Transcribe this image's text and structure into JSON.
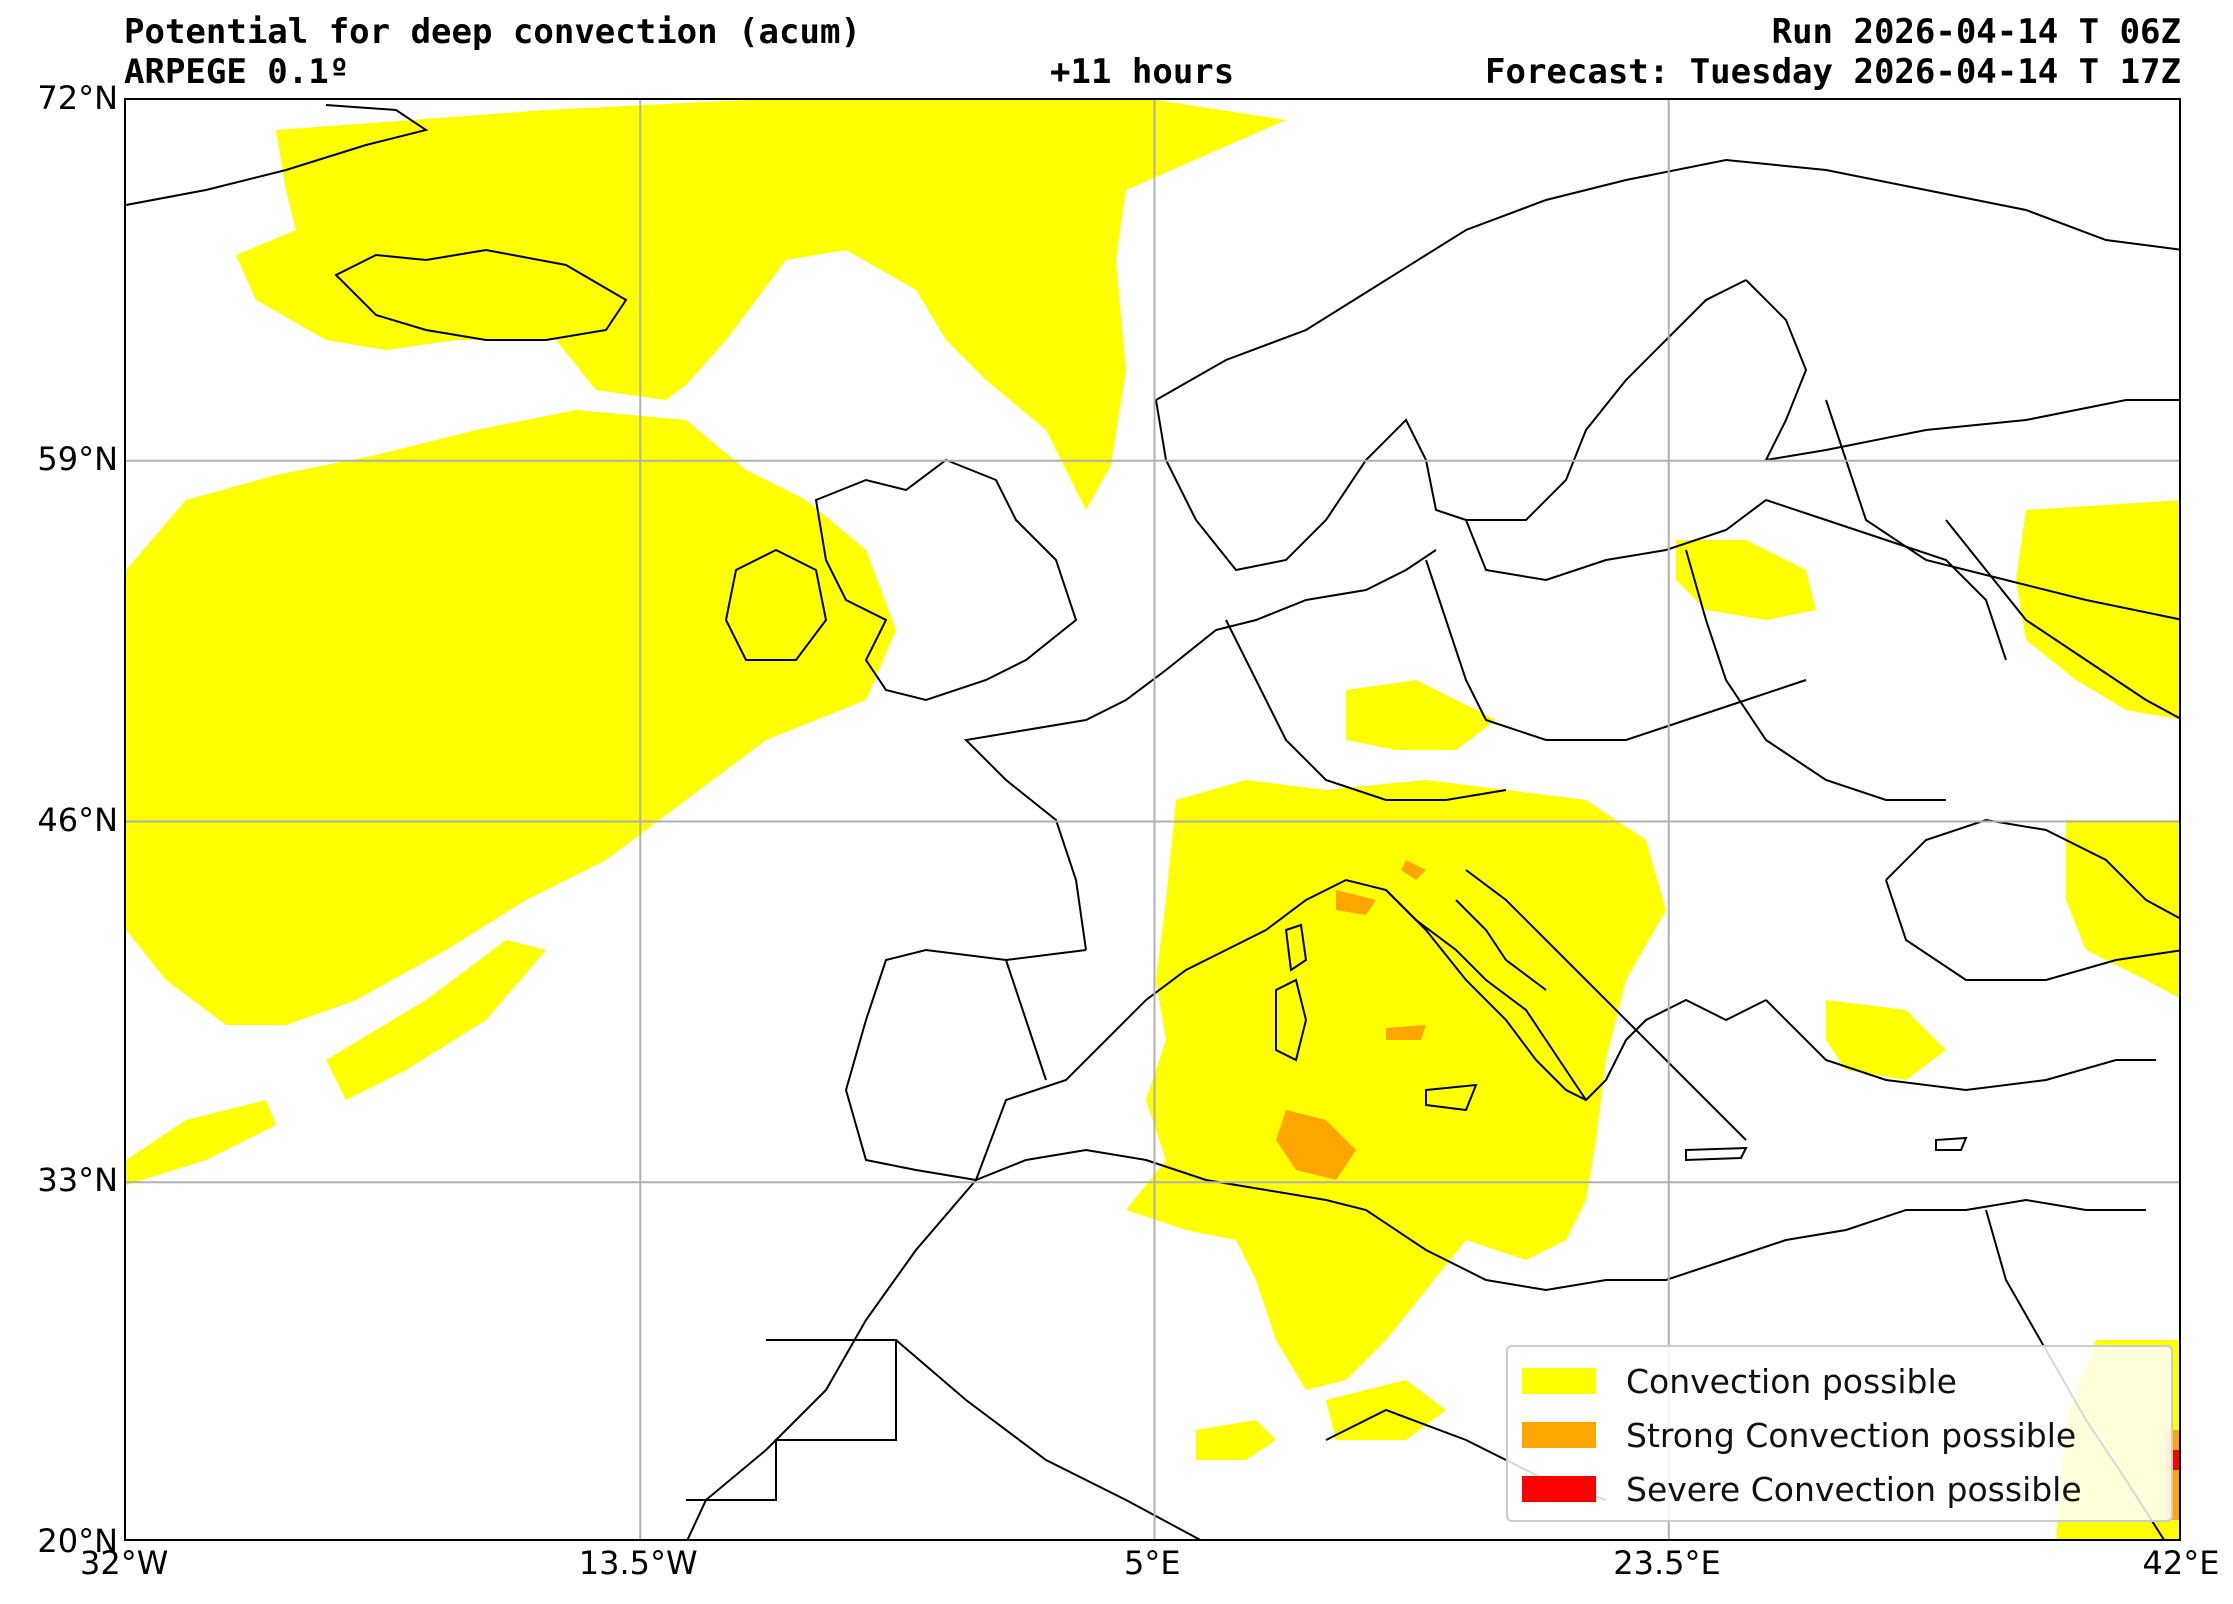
{
  "header": {
    "title": "Potential for deep convection (acum)",
    "model": "ARPEGE 0.1º",
    "lead_time": "+11 hours",
    "run": "Run 2026-04-14 T 06Z",
    "forecast": "Forecast: Tuesday 2026-04-14 T 17Z"
  },
  "axes": {
    "lat_ticks": [
      "72°N",
      "59°N",
      "46°N",
      "33°N",
      "20°N"
    ],
    "lon_ticks": [
      "32°W",
      "13.5°W",
      "5°E",
      "23.5°E",
      "42°E"
    ],
    "lat_range": [
      20,
      72
    ],
    "lon_range": [
      -32,
      42
    ],
    "grid": true
  },
  "legend": {
    "placement": "lower-right",
    "items": [
      {
        "label": "Convection possible",
        "color": "#ffff00"
      },
      {
        "label": "Strong Convection possible",
        "color": "#ffa500"
      },
      {
        "label": "Severe Convection possible",
        "color": "#ff0000"
      }
    ]
  },
  "colors": {
    "convection": "#ffff00",
    "strong": "#ffa500",
    "severe": "#ff0000",
    "coastline": "#000000",
    "grid": "#b0b0b0"
  }
}
